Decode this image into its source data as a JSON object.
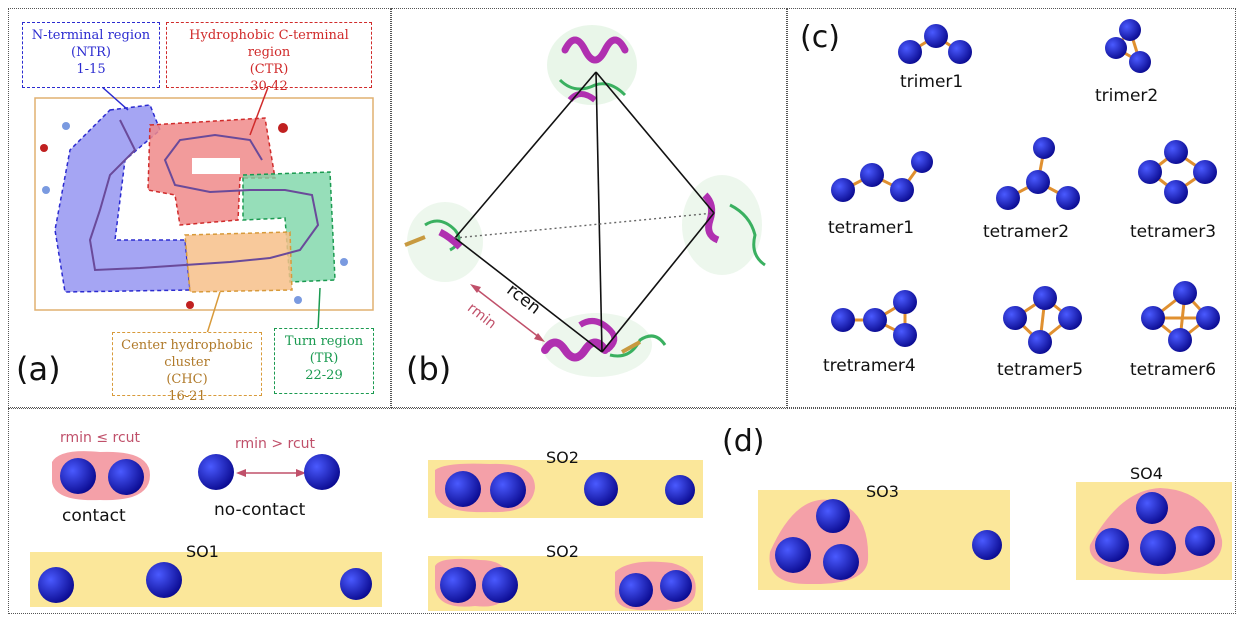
{
  "panel_a": {
    "label": "(a)",
    "ntr": {
      "line1": "N-terminal region",
      "line2": "(NTR)",
      "line3": "1-15",
      "color": "#2b2bd0"
    },
    "ctr": {
      "line1": "Hydrophobic C-terminal region",
      "line2": "(CTR)",
      "line3": "30-42",
      "color": "#d02b2b"
    },
    "chc": {
      "line1": "Center hydrophobic cluster",
      "line2": "(CHC)",
      "line3": "16-21",
      "color": "#d89a3a"
    },
    "tr": {
      "line1": "Turn region",
      "line2": "(TR)",
      "line3": "22-29",
      "color": "#1a9a50"
    }
  },
  "panel_b": {
    "label": "(b)",
    "rcen": "rcen",
    "rmin": "rmin"
  },
  "panel_c": {
    "label": "(c)",
    "oligomers": [
      "trimer1",
      "trimer2",
      "tetramer1",
      "tetramer2",
      "tetramer3",
      "tretramer4",
      "tetramer5",
      "tetramer6"
    ]
  },
  "panel_d": {
    "label": "(d)",
    "contact_condition": "rmin ≤ rcut",
    "nocontact_condition": "rmin > rcut",
    "contact": "contact",
    "no_contact": "no-contact",
    "so1": "SO1",
    "so2a": "SO2",
    "so2b": "SO2",
    "so3": "SO3",
    "so4": "SO4"
  },
  "colors": {
    "cluster_blue": "#1a1acc",
    "highlight_pink": "#f4a0a8",
    "highlight_yellow": "#fbe79a",
    "bond_orange": "#e09030",
    "condition_red": "#c0506a"
  }
}
